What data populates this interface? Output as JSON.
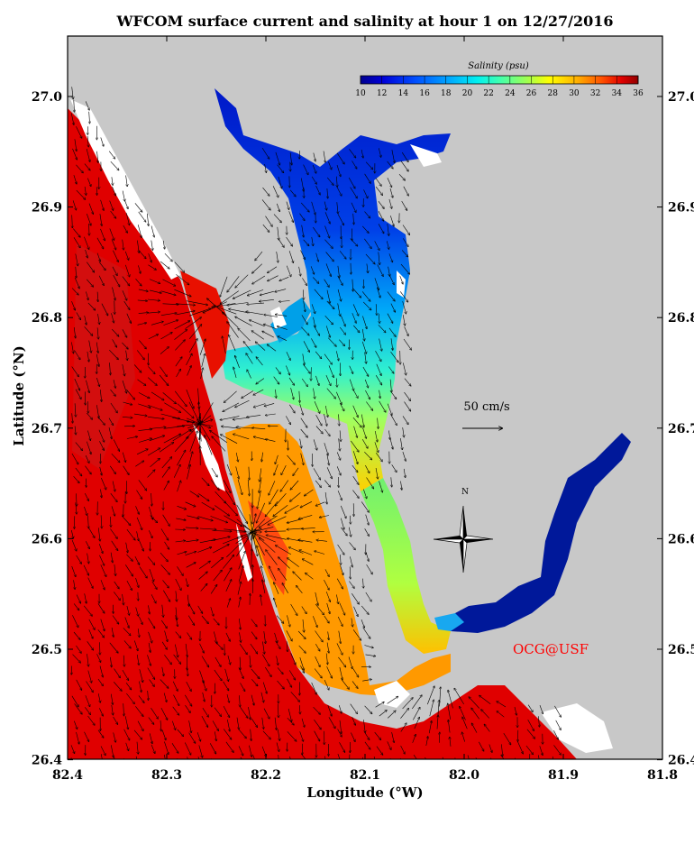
{
  "title": "WFCOM surface current and salinity at hour 1 on 12/27/2016",
  "axes": {
    "xlabel": "Longitude (°W)",
    "ylabel": "Latitude (°N)",
    "xticks": [
      "82.4",
      "82.3",
      "82.2",
      "82.1",
      "82.0",
      "81.9",
      "81.8"
    ],
    "yticks": [
      "27.0",
      "26.9",
      "26.8",
      "26.7",
      "26.6",
      "26.5",
      "26.4"
    ]
  },
  "colorbar": {
    "label": "Salinity (psu)",
    "ticks": [
      "10",
      "12",
      "14",
      "16",
      "18",
      "20",
      "22",
      "24",
      "26",
      "28",
      "30",
      "32",
      "34",
      "36"
    ],
    "colors": [
      "#00008f",
      "#0000c8",
      "#0020ff",
      "#0060ff",
      "#00a0ff",
      "#00d8ff",
      "#40ffc0",
      "#80ff80",
      "#c0ff40",
      "#ffff00",
      "#ffc000",
      "#ff8000",
      "#ff4000",
      "#e00000",
      "#a00000"
    ]
  },
  "scale_arrow": {
    "label": "50 cm/s"
  },
  "compass": {
    "label": "N"
  },
  "credit": {
    "text": "OCG@USF",
    "color": "#ff0000"
  },
  "colors": {
    "land": "#c8c8c8",
    "gulf": "#e00000",
    "gulf_deep": "#c81414",
    "sound": "#ff9900",
    "harbor_north": "#0a2ad8",
    "harbor_mid": "#18c8f0",
    "harbor_south": "#9cf060",
    "river": "#002aa8"
  }
}
